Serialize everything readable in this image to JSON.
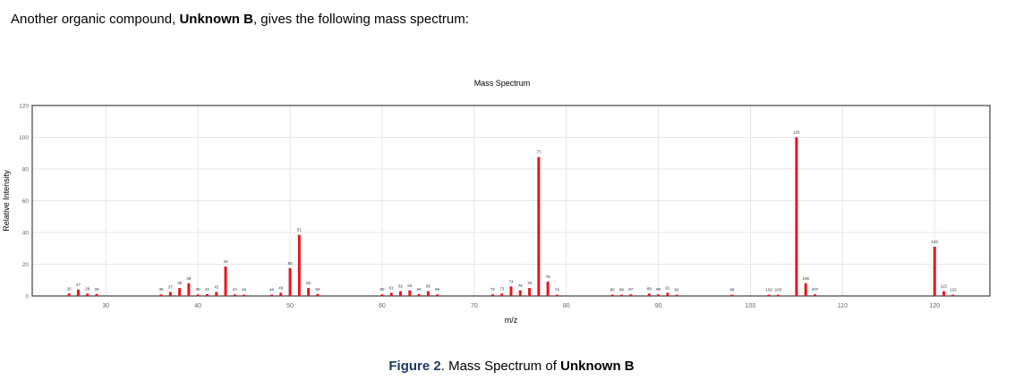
{
  "intro": {
    "prefix": "Another organic compound, ",
    "bold": "Unknown B",
    "suffix": ", gives the following mass spectrum:"
  },
  "caption": {
    "figure": "Figure 2",
    "middle": ". Mass Spectrum of ",
    "bold": "Unknown B"
  },
  "chart_data": {
    "type": "bar",
    "title": "Mass Spectrum",
    "xlabel": "m/z",
    "ylabel": "Relative Intensity",
    "xlim": [
      22,
      126
    ],
    "ylim": [
      0,
      120
    ],
    "xticks": [
      30,
      40,
      50,
      60,
      70,
      80,
      90,
      100,
      110,
      120
    ],
    "yticks": [
      0,
      20,
      40,
      60,
      80,
      100,
      120
    ],
    "grid": true,
    "bar_color": "#e8141e",
    "peaks": [
      {
        "mz": 26,
        "intensity": 1.5,
        "label": "26"
      },
      {
        "mz": 27,
        "intensity": 4,
        "label": "27"
      },
      {
        "mz": 28,
        "intensity": 1.5,
        "label": "28"
      },
      {
        "mz": 29,
        "intensity": 1.2,
        "label": "29"
      },
      {
        "mz": 36,
        "intensity": 1,
        "label": "36"
      },
      {
        "mz": 37,
        "intensity": 2.5,
        "label": "37"
      },
      {
        "mz": 38,
        "intensity": 5,
        "label": "38"
      },
      {
        "mz": 39,
        "intensity": 8,
        "label": "39"
      },
      {
        "mz": 40,
        "intensity": 1,
        "label": "40"
      },
      {
        "mz": 41,
        "intensity": 1.2,
        "label": "41"
      },
      {
        "mz": 42,
        "intensity": 2.5,
        "label": "42"
      },
      {
        "mz": 43,
        "intensity": 18.5,
        "label": "43"
      },
      {
        "mz": 44,
        "intensity": 1,
        "label": "44"
      },
      {
        "mz": 45,
        "intensity": 0.8,
        "label": "45"
      },
      {
        "mz": 48,
        "intensity": 0.8,
        "label": "48"
      },
      {
        "mz": 49,
        "intensity": 2,
        "label": "49"
      },
      {
        "mz": 50,
        "intensity": 17.5,
        "label": "50"
      },
      {
        "mz": 51,
        "intensity": 38.5,
        "label": "51"
      },
      {
        "mz": 52,
        "intensity": 5,
        "label": "52"
      },
      {
        "mz": 53,
        "intensity": 1.2,
        "label": "53"
      },
      {
        "mz": 60,
        "intensity": 1,
        "label": "60"
      },
      {
        "mz": 61,
        "intensity": 2,
        "label": "61"
      },
      {
        "mz": 62,
        "intensity": 3,
        "label": "62"
      },
      {
        "mz": 63,
        "intensity": 3.5,
        "label": "63"
      },
      {
        "mz": 64,
        "intensity": 1.2,
        "label": "64"
      },
      {
        "mz": 65,
        "intensity": 3,
        "label": "65"
      },
      {
        "mz": 66,
        "intensity": 1,
        "label": "66"
      },
      {
        "mz": 72,
        "intensity": 1,
        "label": "72"
      },
      {
        "mz": 73,
        "intensity": 1.5,
        "label": "73"
      },
      {
        "mz": 74,
        "intensity": 6,
        "label": "74"
      },
      {
        "mz": 75,
        "intensity": 3.5,
        "label": "75"
      },
      {
        "mz": 76,
        "intensity": 5,
        "label": "76"
      },
      {
        "mz": 77,
        "intensity": 87.5,
        "label": "77"
      },
      {
        "mz": 78,
        "intensity": 9,
        "label": "78"
      },
      {
        "mz": 79,
        "intensity": 0.8,
        "label": "79"
      },
      {
        "mz": 85,
        "intensity": 0.8,
        "label": "85"
      },
      {
        "mz": 86,
        "intensity": 0.8,
        "label": "86"
      },
      {
        "mz": 87,
        "intensity": 1,
        "label": "87"
      },
      {
        "mz": 89,
        "intensity": 1.5,
        "label": "89"
      },
      {
        "mz": 90,
        "intensity": 1,
        "label": "90"
      },
      {
        "mz": 91,
        "intensity": 2,
        "label": "91"
      },
      {
        "mz": 92,
        "intensity": 0.8,
        "label": "92"
      },
      {
        "mz": 98,
        "intensity": 0.8,
        "label": "98"
      },
      {
        "mz": 102,
        "intensity": 0.8,
        "label": "102"
      },
      {
        "mz": 103,
        "intensity": 0.8,
        "label": "103"
      },
      {
        "mz": 105,
        "intensity": 100,
        "label": "105"
      },
      {
        "mz": 106,
        "intensity": 8,
        "label": "106"
      },
      {
        "mz": 107,
        "intensity": 1,
        "label": "107"
      },
      {
        "mz": 120,
        "intensity": 31,
        "label": "120"
      },
      {
        "mz": 121,
        "intensity": 3,
        "label": "121"
      },
      {
        "mz": 122,
        "intensity": 0.8,
        "label": "122"
      }
    ]
  }
}
